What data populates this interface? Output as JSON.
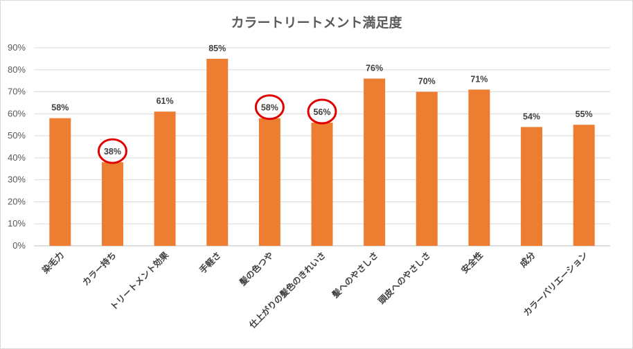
{
  "chart_data": {
    "type": "bar",
    "title": "カラートリートメント満足度",
    "xlabel": "",
    "ylabel": "",
    "ylim": [
      0,
      90
    ],
    "ytick_step": 10,
    "ytick_format": "percent",
    "grid": true,
    "legend": "none",
    "bar_color": "#ed7d31",
    "highlight_color": "#e00000",
    "categories": [
      "染毛力",
      "カラー持ち",
      "トリートメント効果",
      "手軽さ",
      "髪の色つや",
      "仕上がりの髪色のきれいさ",
      "髪へのやさしさ",
      "頭皮へのやさしさ",
      "安全性",
      "成分",
      "カラーバリエーション"
    ],
    "values": [
      58,
      38,
      61,
      85,
      58,
      56,
      76,
      70,
      71,
      54,
      55
    ],
    "data_labels": [
      "58%",
      "38%",
      "61%",
      "85%",
      "58%",
      "56%",
      "76%",
      "70%",
      "71%",
      "54%",
      "55%"
    ],
    "highlighted": [
      "カラー持ち",
      "髪の色つや",
      "仕上がりの髪色のきれいさ"
    ]
  }
}
